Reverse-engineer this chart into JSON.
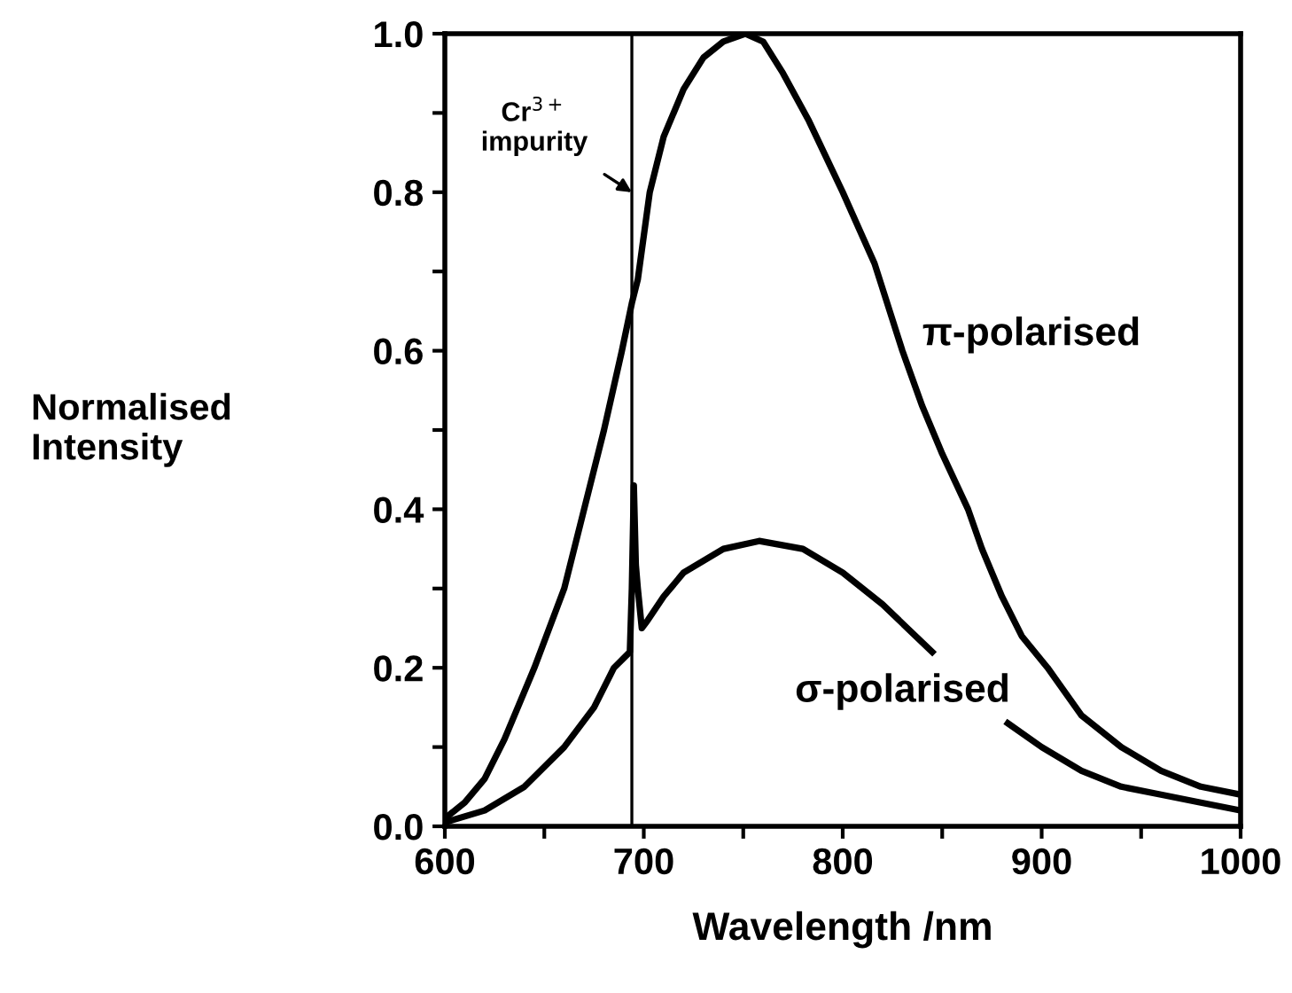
{
  "chart_data": {
    "type": "line",
    "xlabel": "Wavelength /nm",
    "ylabel": "Normalised\nIntensity",
    "xlim": [
      600,
      1000
    ],
    "xticks": [
      600,
      {
        "value": 650,
        "label": null
      },
      700,
      {
        "value": 750,
        "label": null
      },
      800,
      {
        "value": 850,
        "label": null
      },
      900,
      {
        "value": 950,
        "label": null
      },
      1000
    ],
    "ylim": [
      0,
      1.0
    ],
    "yticks": [
      {
        "value": 0,
        "label": "0.0"
      },
      {
        "value": 0.1,
        "label": null
      },
      0.2,
      {
        "value": 0.3,
        "label": null
      },
      0.4,
      {
        "value": 0.5,
        "label": null
      },
      0.6,
      {
        "value": 0.7,
        "label": null
      },
      0.8,
      {
        "value": 0.9,
        "label": null
      },
      {
        "value": 1.0,
        "label": "1.0"
      }
    ],
    "grid": false,
    "legend": false,
    "marker": "none",
    "line_style": "solid",
    "ref_lines": [
      {
        "axis": "x",
        "value": 694,
        "color": "#000000"
      }
    ],
    "annotations": [
      {
        "text": "Cr$^{3+}$\nimpurity",
        "x": 694,
        "y": 0.8
      }
    ],
    "series": [
      {
        "name": "π-polarised",
        "color": "#000000",
        "x": [
          600,
          610,
          620,
          630,
          645,
          660,
          670,
          680,
          689,
          694,
          697,
          703,
          710,
          720,
          730,
          740,
          751,
          760,
          770,
          783,
          800,
          816,
          830,
          840,
          850,
          863,
          870,
          880,
          890,
          903,
          920,
          940,
          960,
          980,
          1000
        ],
        "values": [
          0.01,
          0.03,
          0.06,
          0.11,
          0.2,
          0.3,
          0.4,
          0.5,
          0.6,
          0.66,
          0.69,
          0.8,
          0.87,
          0.93,
          0.97,
          0.99,
          1.0,
          0.99,
          0.95,
          0.89,
          0.8,
          0.71,
          0.6,
          0.53,
          0.47,
          0.4,
          0.35,
          0.29,
          0.24,
          0.2,
          0.14,
          0.1,
          0.07,
          0.05,
          0.04
        ]
      },
      {
        "name": "σ-polarised",
        "color": "#000000",
        "x": [
          600,
          620,
          640,
          660,
          675,
          685,
          693,
          694,
          695,
          696,
          697,
          699,
          702,
          710,
          720,
          740,
          758,
          780,
          800,
          820,
          845,
          865,
          883,
          900,
          920,
          940,
          960,
          980,
          1000
        ],
        "values": [
          0.005,
          0.02,
          0.05,
          0.1,
          0.15,
          0.2,
          0.22,
          0.3,
          0.43,
          0.33,
          0.3,
          0.25,
          0.26,
          0.29,
          0.32,
          0.35,
          0.36,
          0.35,
          0.32,
          0.28,
          0.22,
          null,
          0.13,
          0.1,
          0.07,
          0.05,
          0.04,
          0.03,
          0.02
        ]
      }
    ]
  }
}
